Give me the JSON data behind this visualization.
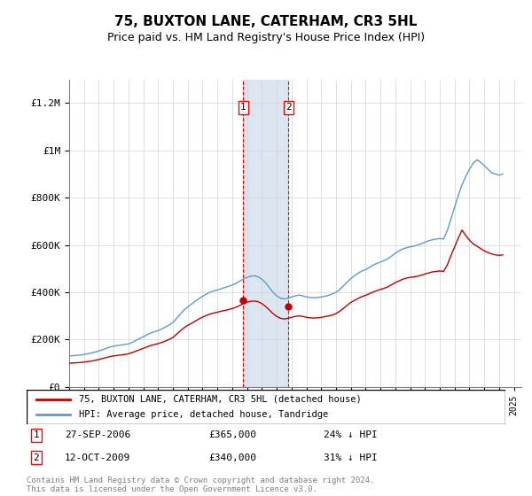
{
  "title": "75, BUXTON LANE, CATERHAM, CR3 5HL",
  "subtitle": "Price paid vs. HM Land Registry's House Price Index (HPI)",
  "legend_line1": "75, BUXTON LANE, CATERHAM, CR3 5HL (detached house)",
  "legend_line2": "HPI: Average price, detached house, Tandridge",
  "transaction1_label": "1",
  "transaction1_date": "27-SEP-2006",
  "transaction1_price": "£365,000",
  "transaction1_hpi": "24% ↓ HPI",
  "transaction2_label": "2",
  "transaction2_date": "12-OCT-2009",
  "transaction2_price": "£340,000",
  "transaction2_hpi": "31% ↓ HPI",
  "footnote": "Contains HM Land Registry data © Crown copyright and database right 2024.\nThis data is licensed under the Open Government Licence v3.0.",
  "hpi_color": "#5b9bd5",
  "price_color": "#c00000",
  "highlight_color": "#dce6f1",
  "transaction1_x": 2006.75,
  "transaction2_x": 2009.79,
  "ylim": [
    0,
    1300000
  ],
  "xlim_start": 1995,
  "xlim_end": 2025.5,
  "hpi_data_x": [
    1995,
    1995.25,
    1995.5,
    1995.75,
    1996,
    1996.25,
    1996.5,
    1996.75,
    1997,
    1997.25,
    1997.5,
    1997.75,
    1998,
    1998.25,
    1998.5,
    1998.75,
    1999,
    1999.25,
    1999.5,
    1999.75,
    2000,
    2000.25,
    2000.5,
    2000.75,
    2001,
    2001.25,
    2001.5,
    2001.75,
    2002,
    2002.25,
    2002.5,
    2002.75,
    2003,
    2003.25,
    2003.5,
    2003.75,
    2004,
    2004.25,
    2004.5,
    2004.75,
    2005,
    2005.25,
    2005.5,
    2005.75,
    2006,
    2006.25,
    2006.5,
    2006.75,
    2007,
    2007.25,
    2007.5,
    2007.75,
    2008,
    2008.25,
    2008.5,
    2008.75,
    2009,
    2009.25,
    2009.5,
    2009.75,
    2010,
    2010.25,
    2010.5,
    2010.75,
    2011,
    2011.25,
    2011.5,
    2011.75,
    2012,
    2012.25,
    2012.5,
    2012.75,
    2013,
    2013.25,
    2013.5,
    2013.75,
    2014,
    2014.25,
    2014.5,
    2014.75,
    2015,
    2015.25,
    2015.5,
    2015.75,
    2016,
    2016.25,
    2016.5,
    2016.75,
    2017,
    2017.25,
    2017.5,
    2017.75,
    2018,
    2018.25,
    2018.5,
    2018.75,
    2019,
    2019.25,
    2019.5,
    2019.75,
    2020,
    2020.25,
    2020.5,
    2020.75,
    2021,
    2021.25,
    2021.5,
    2021.75,
    2022,
    2022.25,
    2022.5,
    2022.75,
    2023,
    2023.25,
    2023.5,
    2023.75,
    2024,
    2024.25
  ],
  "hpi_data_y": [
    130000,
    132000,
    133000,
    135000,
    137000,
    140000,
    143000,
    147000,
    152000,
    157000,
    163000,
    168000,
    172000,
    175000,
    177000,
    179000,
    182000,
    188000,
    196000,
    204000,
    212000,
    220000,
    228000,
    233000,
    238000,
    245000,
    253000,
    262000,
    272000,
    290000,
    308000,
    325000,
    338000,
    350000,
    362000,
    373000,
    383000,
    392000,
    400000,
    406000,
    410000,
    415000,
    420000,
    425000,
    430000,
    438000,
    447000,
    456000,
    463000,
    468000,
    470000,
    465000,
    455000,
    440000,
    420000,
    400000,
    385000,
    375000,
    372000,
    375000,
    380000,
    385000,
    388000,
    385000,
    380000,
    378000,
    377000,
    378000,
    380000,
    383000,
    387000,
    393000,
    400000,
    412000,
    427000,
    443000,
    458000,
    470000,
    481000,
    490000,
    496000,
    505000,
    515000,
    522000,
    528000,
    534000,
    542000,
    553000,
    565000,
    575000,
    583000,
    588000,
    592000,
    595000,
    600000,
    605000,
    612000,
    618000,
    622000,
    625000,
    627000,
    625000,
    660000,
    710000,
    760000,
    810000,
    855000,
    890000,
    920000,
    945000,
    960000,
    950000,
    935000,
    920000,
    905000,
    900000,
    895000,
    900000
  ],
  "price_data_x": [
    1995,
    1995.25,
    1995.5,
    1995.75,
    1996,
    1996.25,
    1996.5,
    1996.75,
    1997,
    1997.25,
    1997.5,
    1997.75,
    1998,
    1998.25,
    1998.5,
    1998.75,
    1999,
    1999.25,
    1999.5,
    1999.75,
    2000,
    2000.25,
    2000.5,
    2000.75,
    2001,
    2001.25,
    2001.5,
    2001.75,
    2002,
    2002.25,
    2002.5,
    2002.75,
    2003,
    2003.25,
    2003.5,
    2003.75,
    2004,
    2004.25,
    2004.5,
    2004.75,
    2005,
    2005.25,
    2005.5,
    2005.75,
    2006,
    2006.25,
    2006.5,
    2006.75,
    2007,
    2007.25,
    2007.5,
    2007.75,
    2008,
    2008.25,
    2008.5,
    2008.75,
    2009,
    2009.25,
    2009.5,
    2009.75,
    2010,
    2010.25,
    2010.5,
    2010.75,
    2011,
    2011.25,
    2011.5,
    2011.75,
    2012,
    2012.25,
    2012.5,
    2012.75,
    2013,
    2013.25,
    2013.5,
    2013.75,
    2014,
    2014.25,
    2014.5,
    2014.75,
    2015,
    2015.25,
    2015.5,
    2015.75,
    2016,
    2016.25,
    2016.5,
    2016.75,
    2017,
    2017.25,
    2017.5,
    2017.75,
    2018,
    2018.25,
    2018.5,
    2018.75,
    2019,
    2019.25,
    2019.5,
    2019.75,
    2020,
    2020.25,
    2020.5,
    2020.75,
    2021,
    2021.25,
    2021.5,
    2021.75,
    2022,
    2022.25,
    2022.5,
    2022.75,
    2023,
    2023.25,
    2023.5,
    2023.75,
    2024,
    2024.25
  ],
  "price_data_y": [
    100000,
    101000,
    102000,
    103000,
    105000,
    107000,
    109000,
    112000,
    116000,
    120000,
    124000,
    128000,
    131000,
    133000,
    135000,
    137000,
    140000,
    145000,
    151000,
    157000,
    163000,
    169000,
    175000,
    179000,
    183000,
    188000,
    194000,
    201000,
    209000,
    223000,
    237000,
    250000,
    260000,
    269000,
    278000,
    287000,
    295000,
    302000,
    308000,
    312000,
    316000,
    320000,
    323000,
    327000,
    331000,
    337000,
    344000,
    352000,
    358000,
    362000,
    363000,
    360000,
    352000,
    340000,
    325000,
    310000,
    298000,
    290000,
    287000,
    290000,
    294000,
    298000,
    300000,
    298000,
    294000,
    292000,
    291000,
    292000,
    294000,
    297000,
    300000,
    304000,
    310000,
    320000,
    332000,
    345000,
    357000,
    366000,
    374000,
    382000,
    387000,
    394000,
    401000,
    407000,
    412000,
    417000,
    423000,
    432000,
    441000,
    448000,
    455000,
    460000,
    463000,
    465000,
    468000,
    472000,
    477000,
    482000,
    486000,
    488000,
    490000,
    488000,
    515000,
    555000,
    592000,
    630000,
    663000,
    640000,
    620000,
    605000,
    595000,
    585000,
    575000,
    568000,
    562000,
    558000,
    556000,
    558000
  ]
}
